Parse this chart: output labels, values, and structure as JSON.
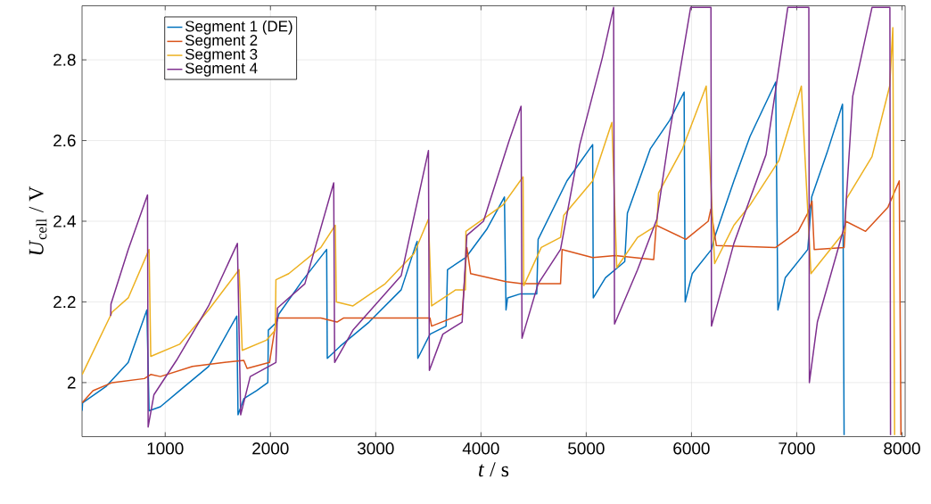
{
  "chart_data": {
    "type": "line",
    "xlabel": "*t* / s",
    "ylabel": "*U*$_{cell}$ / V",
    "xlim": [
      210,
      8030
    ],
    "ylim": [
      1.866,
      2.934
    ],
    "xticks": [
      1000,
      2000,
      3000,
      4000,
      5000,
      6000,
      7000,
      8000
    ],
    "yticks": [
      2,
      2.2,
      2.4,
      2.6,
      2.8
    ],
    "grid": true,
    "legend": "top left",
    "line_style": "solid",
    "marker": "none",
    "series": [
      {
        "name": "Segment 1 (DE)",
        "color": "#0072bd",
        "x": [
          211,
          215,
          436,
          649,
          826,
          847,
          954,
          1137,
          1412,
          1680,
          1692,
          1747,
          1869,
          1975,
          1980,
          2060,
          2080,
          2296,
          2534,
          2540,
          2662,
          2937,
          3242,
          3379,
          3394,
          3400,
          3516,
          3669,
          3682,
          3856,
          4055,
          4223,
          4238,
          4253,
          4375,
          4530,
          4543,
          4817,
          5061,
          5067,
          5183,
          5366,
          5391,
          5610,
          5793,
          5930,
          5940,
          6007,
          6190,
          6220,
          6403,
          6556,
          6800,
          6821,
          6891,
          7105,
          7142,
          7288,
          7435,
          7450
        ],
        "values": [
          1.93,
          1.95,
          1.99,
          2.05,
          2.18,
          1.93,
          1.94,
          1.98,
          2.04,
          2.165,
          1.92,
          1.96,
          1.98,
          2.0,
          2.13,
          2.15,
          2.17,
          2.25,
          2.33,
          2.06,
          2.09,
          2.15,
          2.23,
          2.34,
          2.35,
          2.06,
          2.12,
          2.14,
          2.28,
          2.31,
          2.38,
          2.46,
          2.18,
          2.21,
          2.22,
          2.22,
          2.355,
          2.5,
          2.59,
          2.21,
          2.26,
          2.3,
          2.42,
          2.58,
          2.65,
          2.72,
          2.2,
          2.27,
          2.33,
          2.36,
          2.5,
          2.61,
          2.745,
          2.18,
          2.26,
          2.33,
          2.46,
          2.57,
          2.69,
          1.87
        ]
      },
      {
        "name": "Segment 2",
        "color": "#d95319",
        "x": [
          211,
          314,
          497,
          802,
          863,
          954,
          1259,
          1564,
          1747,
          1778,
          1991,
          2058,
          2479,
          2632,
          2693,
          3516,
          3531,
          3821,
          3866,
          3902,
          4238,
          4390,
          4756,
          4771,
          5061,
          5275,
          5641,
          5665,
          5946,
          6159,
          6184,
          6236,
          6800,
          7013,
          7105,
          7145,
          7166,
          7450,
          7465,
          7654,
          7867,
          7974,
          7990
        ],
        "values": [
          1.95,
          1.98,
          2.0,
          2.01,
          2.02,
          2.015,
          2.04,
          2.05,
          2.055,
          2.035,
          2.05,
          2.16,
          2.16,
          2.15,
          2.16,
          2.16,
          2.14,
          2.17,
          2.335,
          2.27,
          2.25,
          2.245,
          2.245,
          2.33,
          2.31,
          2.315,
          2.305,
          2.39,
          2.355,
          2.4,
          2.43,
          2.34,
          2.335,
          2.375,
          2.42,
          2.45,
          2.33,
          2.335,
          2.4,
          2.375,
          2.435,
          2.5,
          1.87
        ]
      },
      {
        "name": "Segment 3",
        "color": "#edb120",
        "x": [
          211,
          497,
          649,
          847,
          863,
          1137,
          1412,
          1702,
          1732,
          1961,
          2046,
          2052,
          2174,
          2479,
          2616,
          2626,
          2784,
          3090,
          3364,
          3501,
          3531,
          3760,
          3852,
          3857,
          4208,
          4400,
          4406,
          4573,
          4756,
          4787,
          5061,
          5244,
          5290,
          5488,
          5671,
          5687,
          5915,
          6140,
          6220,
          6403,
          6556,
          6830,
          7044,
          7135,
          7456,
          7471,
          7715,
          7883,
          7913,
          7930
        ],
        "values": [
          2.02,
          2.175,
          2.21,
          2.33,
          2.065,
          2.095,
          2.18,
          2.28,
          2.08,
          2.105,
          2.13,
          2.255,
          2.27,
          2.335,
          2.39,
          2.2,
          2.19,
          2.245,
          2.32,
          2.405,
          2.19,
          2.23,
          2.23,
          2.375,
          2.44,
          2.51,
          2.24,
          2.335,
          2.36,
          2.415,
          2.5,
          2.645,
          2.285,
          2.36,
          2.39,
          2.47,
          2.58,
          2.735,
          2.295,
          2.39,
          2.44,
          2.55,
          2.735,
          2.27,
          2.375,
          2.455,
          2.56,
          2.735,
          2.88,
          1.87
        ]
      },
      {
        "name": "Segment 4",
        "color": "#7e2f8e",
        "x": [
          482,
          485,
          649,
          832,
          838,
          893,
          1107,
          1412,
          1686,
          1717,
          1808,
          2052,
          2067,
          2327,
          2601,
          2610,
          2784,
          3242,
          3501,
          3510,
          3638,
          3821,
          3866,
          4024,
          4268,
          4381,
          4390,
          4543,
          4756,
          4939,
          5153,
          5260,
          5269,
          5488,
          5671,
          5793,
          5992,
          6185,
          6190,
          6403,
          6708,
          6915,
          7115,
          7120,
          7196,
          7456,
          7532,
          7715,
          7885,
          7891
        ],
        "values": [
          2.165,
          2.195,
          2.33,
          2.465,
          1.89,
          1.97,
          2.055,
          2.19,
          2.345,
          1.92,
          2.015,
          2.05,
          2.185,
          2.245,
          2.495,
          2.05,
          2.13,
          2.265,
          2.575,
          2.03,
          2.12,
          2.15,
          2.365,
          2.4,
          2.6,
          2.685,
          2.11,
          2.245,
          2.33,
          2.59,
          2.805,
          2.93,
          2.145,
          2.28,
          2.405,
          2.62,
          2.93,
          2.93,
          2.14,
          2.345,
          2.565,
          2.93,
          2.93,
          2.0,
          2.15,
          2.39,
          2.71,
          2.93,
          2.93,
          1.87
        ]
      }
    ]
  }
}
